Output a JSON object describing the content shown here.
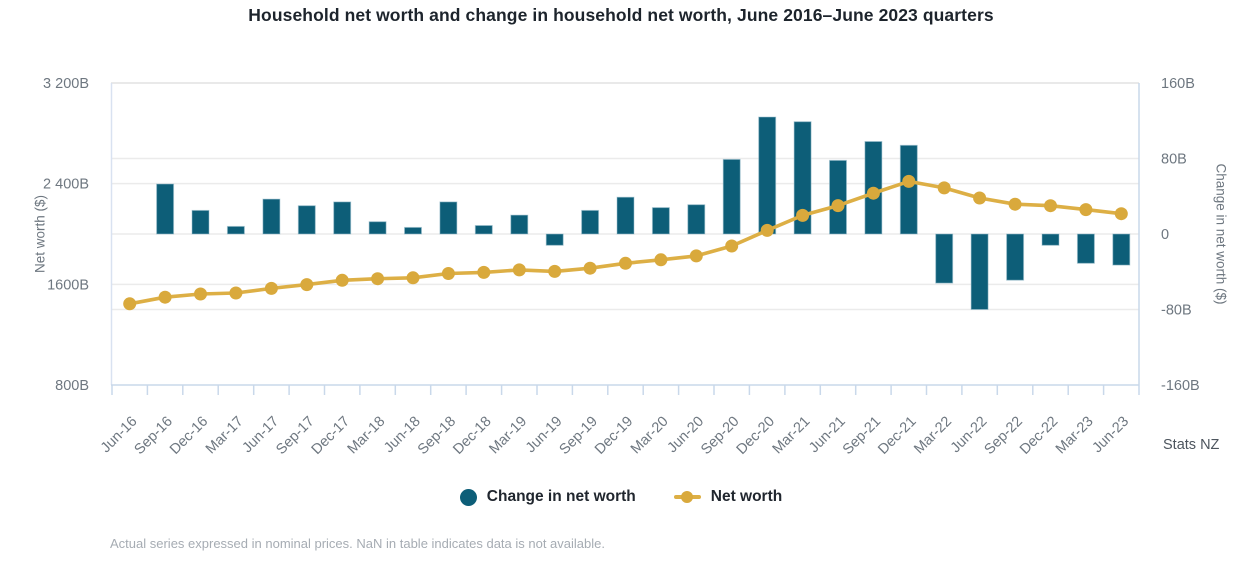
{
  "title": "Household net worth and change in household net worth, June 2016–June 2023 quarters",
  "source": "Stats NZ",
  "footnote": "Actual series expressed in nominal prices. NaN in table indicates data is not available.",
  "legend": [
    {
      "label": "Change in net worth",
      "marker": "bar-dot-swatch"
    },
    {
      "label": "Net worth",
      "marker": "line-dot-swatch"
    }
  ],
  "colors": {
    "bar": "#0d5e78",
    "bar_edge": "#9cc0cd",
    "line": "#ddaf45",
    "dot": "#d9a93c",
    "grid": "#ebebeb",
    "frame_top": "#e9e9e9",
    "frame_left": "#d9e2f1",
    "axis_line": "#c9d8ea",
    "tick_text": "#6e7780",
    "title_text": "#1d242c"
  },
  "chart_data": {
    "type": "combo",
    "categories": [
      "Jun-16",
      "Sep-16",
      "Dec-16",
      "Mar-17",
      "Jun-17",
      "Sep-17",
      "Dec-17",
      "Mar-18",
      "Jun-18",
      "Sep-18",
      "Dec-18",
      "Mar-19",
      "Jun-19",
      "Sep-19",
      "Dec-19",
      "Mar-20",
      "Jun-20",
      "Sep-20",
      "Dec-20",
      "Mar-21",
      "Jun-21",
      "Sep-21",
      "Dec-21",
      "Mar-22",
      "Jun-22",
      "Sep-22",
      "Dec-22",
      "Mar-23",
      "Jun-23"
    ],
    "series": [
      {
        "name": "Change in net worth",
        "type": "bar",
        "axis": "right",
        "color": "#0d5e78",
        "values": [
          null,
          53,
          25,
          8,
          37,
          30,
          34,
          13,
          7,
          34,
          9,
          20,
          -12,
          25,
          39,
          28,
          31,
          79,
          124,
          119,
          78,
          98,
          94,
          -52,
          -80,
          -49,
          -12,
          -31,
          -33
        ]
      },
      {
        "name": "Net worth",
        "type": "line",
        "axis": "left",
        "color": "#d9a93c",
        "values": [
          1445,
          1498,
          1523,
          1531,
          1568,
          1598,
          1632,
          1645,
          1652,
          1686,
          1695,
          1715,
          1703,
          1728,
          1767,
          1795,
          1826,
          1905,
          2029,
          2148,
          2226,
          2324,
          2418,
          2366,
          2286,
          2237,
          2225,
          2194,
          2161
        ]
      }
    ],
    "left_axis": {
      "label": "Net worth ($)",
      "range": [
        800,
        3200
      ],
      "tick_step": 800,
      "ticks": [
        {
          "value": 3200,
          "label": "3 200B"
        },
        {
          "value": 2400,
          "label": "2 400B"
        },
        {
          "value": 1600,
          "label": "1600B"
        },
        {
          "value": 800,
          "label": "800B"
        }
      ]
    },
    "right_axis": {
      "label": "Change in net worth ($)",
      "range": [
        -160,
        160
      ],
      "tick_step": 80,
      "ticks": [
        {
          "value": 160,
          "label": "160B"
        },
        {
          "value": 80,
          "label": "80B"
        },
        {
          "value": 0,
          "label": "0"
        },
        {
          "value": -80,
          "label": "-80B"
        },
        {
          "value": -160,
          "label": "-160B"
        }
      ]
    },
    "grid": true,
    "legend_position": "bottom"
  }
}
